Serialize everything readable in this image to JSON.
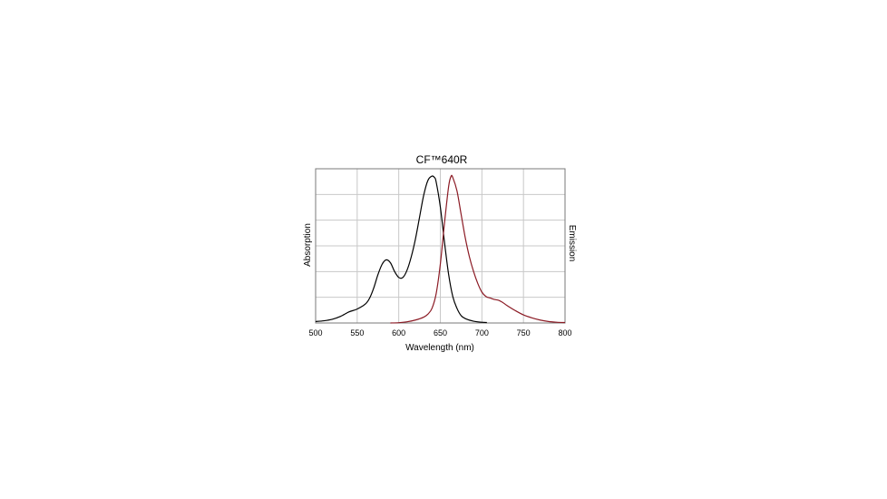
{
  "chart_data": {
    "type": "line",
    "title": "CF™640R",
    "xlabel": "Wavelength (nm)",
    "ylabel_left": "Absorption",
    "ylabel_right": "Emission",
    "xlim": [
      500,
      800
    ],
    "ylim": [
      0,
      1.05
    ],
    "xticks": [
      500,
      550,
      600,
      650,
      700,
      750,
      800
    ],
    "y_gridlines": 5,
    "grid": true,
    "series": [
      {
        "color": "#000000",
        "x": [
          500,
          510,
          520,
          530,
          540,
          550,
          560,
          565,
          570,
          575,
          580,
          585,
          590,
          595,
          600,
          605,
          610,
          615,
          620,
          625,
          630,
          635,
          640,
          643,
          645,
          650,
          655,
          660,
          665,
          670,
          675,
          680,
          690,
          700,
          706
        ],
        "y": [
          0.01,
          0.015,
          0.025,
          0.045,
          0.075,
          0.095,
          0.13,
          0.17,
          0.24,
          0.33,
          0.4,
          0.43,
          0.41,
          0.35,
          0.31,
          0.31,
          0.36,
          0.45,
          0.57,
          0.72,
          0.87,
          0.97,
          1.0,
          0.99,
          0.96,
          0.79,
          0.55,
          0.33,
          0.18,
          0.1,
          0.05,
          0.03,
          0.012,
          0.005,
          0.003
        ]
      },
      {
        "color": "#8b1a24",
        "x": [
          590,
          600,
          610,
          620,
          630,
          635,
          640,
          645,
          650,
          655,
          660,
          663,
          665,
          670,
          675,
          680,
          685,
          690,
          695,
          700,
          705,
          710,
          715,
          720,
          725,
          730,
          740,
          750,
          760,
          770,
          780,
          790,
          800
        ],
        "y": [
          0.0,
          0.002,
          0.008,
          0.02,
          0.04,
          0.06,
          0.1,
          0.2,
          0.4,
          0.68,
          0.93,
          1.0,
          0.99,
          0.9,
          0.74,
          0.58,
          0.45,
          0.35,
          0.27,
          0.21,
          0.18,
          0.17,
          0.16,
          0.155,
          0.14,
          0.12,
          0.085,
          0.055,
          0.035,
          0.02,
          0.01,
          0.005,
          0.003
        ]
      }
    ]
  }
}
